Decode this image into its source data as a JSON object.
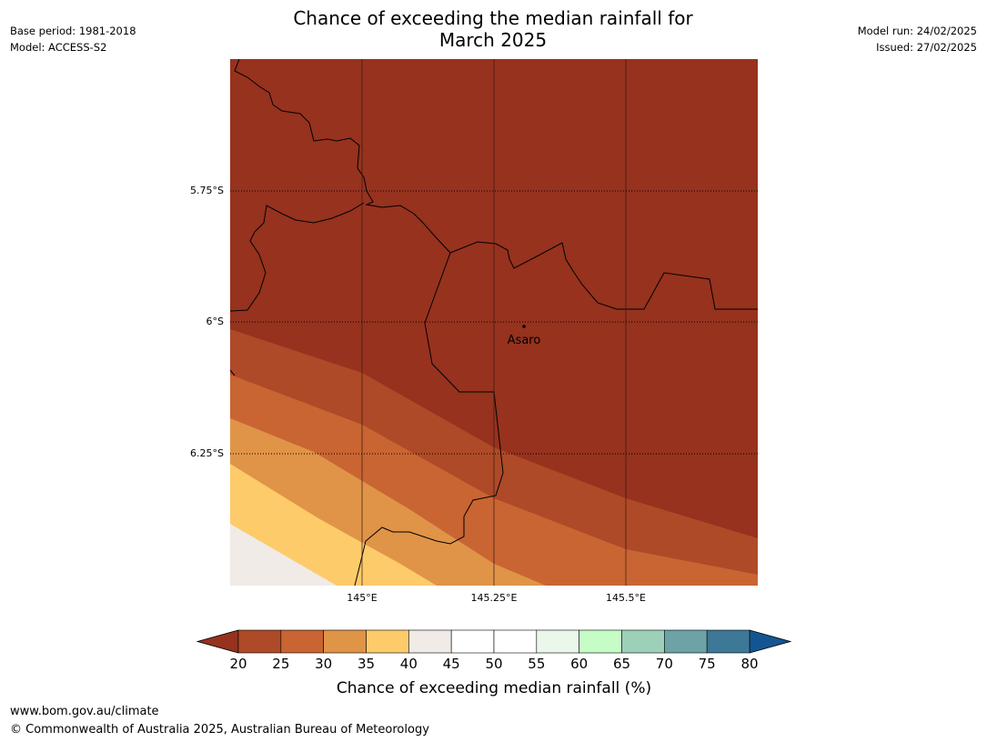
{
  "title": {
    "line1": "Chance of exceeding the median rainfall for",
    "line2": "March 2025"
  },
  "meta_left": {
    "base_period": "Base period: 1981-2018",
    "model": "Model: ACCESS-S2"
  },
  "meta_right": {
    "model_run": "Model run: 24/02/2025",
    "issued": "Issued: 27/02/2025"
  },
  "map": {
    "lat_labels": [
      "5.75°S",
      "6°S",
      "6.25°S"
    ],
    "lon_labels": [
      "145°E",
      "145.25°E",
      "145.5°E"
    ],
    "lat_values": [
      -5.75,
      -6.0,
      -6.25
    ],
    "lon_values": [
      145.0,
      145.25,
      145.5
    ],
    "extent": {
      "lon_min": 144.75,
      "lon_max": 145.75,
      "lat_min": -6.5,
      "lat_max": -5.5
    },
    "town": {
      "name": "Asaro",
      "lon": 145.305,
      "lat": -6.01
    }
  },
  "colorbar": {
    "ticks": [
      "20",
      "25",
      "30",
      "35",
      "40",
      "45",
      "50",
      "55",
      "60",
      "65",
      "70",
      "75",
      "80"
    ],
    "label": "Chance of exceeding median rainfall (%)",
    "below_color": "#96321e",
    "above_color": "#135592",
    "colors": [
      "#ae4a27",
      "#c96533",
      "#e09448",
      "#fdcb6a",
      "#f0ebe7",
      "#ffffff",
      "#ffffff",
      "#eaf7ea",
      "#c6fdc7",
      "#9dd0b9",
      "#6da3a6",
      "#3e7897"
    ]
  },
  "footer": {
    "url": "www.bom.gov.au/climate",
    "copyright": "© Commonwealth of Australia 2025, Australian Bureau of Meteorology"
  }
}
